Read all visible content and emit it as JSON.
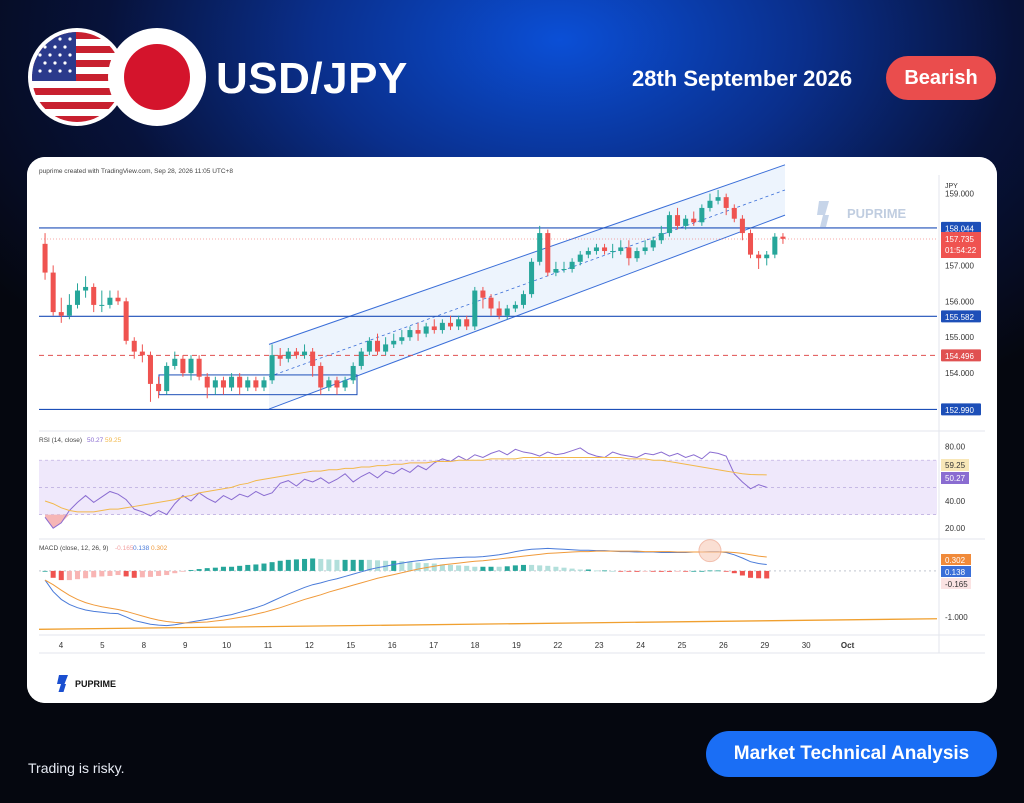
{
  "header": {
    "pair": "USD/JPY",
    "date": "28th September 2026",
    "sentiment": "Bearish"
  },
  "footer": {
    "disclaimer": "Trading is risky.",
    "cta": "Market Technical Analysis"
  },
  "colors": {
    "bull": "#26a69a",
    "bear": "#ef5350",
    "level_line": "#1d4fb8",
    "support_dashed": "#e05151",
    "channel": "#3a6ed8",
    "rsi": "#8a6cd1",
    "rsi_ma": "#f2b84b",
    "macd": "#4a7bd9",
    "signal": "#f09a3a"
  },
  "chart_data": [
    {
      "type": "candlestick",
      "title": "puprime created with TradingView.com, Sep 28, 2026 11:05 UTC+8",
      "watermark": "PUPRIME",
      "y_unit": "JPY",
      "ylim": [
        152.5,
        159.35
      ],
      "y_ticks": [
        "159.000",
        "157.000",
        "156.000",
        "155.000",
        "154.000"
      ],
      "x_ticks": [
        "4",
        "5",
        "8",
        "9",
        "10",
        "11",
        "12",
        "15",
        "16",
        "17",
        "18",
        "19",
        "22",
        "23",
        "24",
        "25",
        "26",
        "29",
        "30",
        "Oct"
      ],
      "horizontal_levels": [
        {
          "value": 158.044,
          "label": "158.044",
          "style": "solid",
          "color": "#1d4fb8"
        },
        {
          "value": 155.582,
          "label": "155.582",
          "style": "solid",
          "color": "#1d4fb8"
        },
        {
          "value": 154.496,
          "label": "154.496",
          "style": "dashed",
          "color": "#e05151"
        },
        {
          "value": 152.99,
          "label": "152.990",
          "style": "solid",
          "color": "#1d4fb8"
        }
      ],
      "last_price": {
        "value": 157.735,
        "label": "157.735",
        "countdown": "01:54:22"
      },
      "channel": {
        "lower": [
          [
            153.0,
            0
          ],
          [
            158.4,
            1
          ]
        ],
        "upper": [
          [
            154.8,
            0
          ],
          [
            159.8,
            1
          ]
        ]
      },
      "candles": [
        [
          157.6,
          156.8,
          157.9,
          156.6
        ],
        [
          156.8,
          155.7,
          157.0,
          155.6
        ],
        [
          155.7,
          155.6,
          156.1,
          155.4
        ],
        [
          155.6,
          155.9,
          156.2,
          155.5
        ],
        [
          155.9,
          156.3,
          156.5,
          155.8
        ],
        [
          156.3,
          156.4,
          156.7,
          156.1
        ],
        [
          156.4,
          155.9,
          156.5,
          155.7
        ],
        [
          155.9,
          155.9,
          156.3,
          155.7
        ],
        [
          155.9,
          156.1,
          156.3,
          155.8
        ],
        [
          156.1,
          156.0,
          156.3,
          155.9
        ],
        [
          156.0,
          154.9,
          156.1,
          154.8
        ],
        [
          154.9,
          154.6,
          155.0,
          154.4
        ],
        [
          154.6,
          154.5,
          154.8,
          154.3
        ],
        [
          154.5,
          153.7,
          154.6,
          153.2
        ],
        [
          153.7,
          153.5,
          153.9,
          153.3
        ],
        [
          153.5,
          154.2,
          154.3,
          153.4
        ],
        [
          154.2,
          154.4,
          154.6,
          154.1
        ],
        [
          154.4,
          154.0,
          154.5,
          153.9
        ],
        [
          154.0,
          154.4,
          154.5,
          153.8
        ],
        [
          154.4,
          153.9,
          154.5,
          153.8
        ],
        [
          153.9,
          153.6,
          154.0,
          153.3
        ],
        [
          153.6,
          153.8,
          153.9,
          153.4
        ],
        [
          153.8,
          153.6,
          153.9,
          153.4
        ],
        [
          153.6,
          153.9,
          154.0,
          153.5
        ],
        [
          153.9,
          153.6,
          154.0,
          153.4
        ],
        [
          153.6,
          153.8,
          153.9,
          153.5
        ],
        [
          153.8,
          153.6,
          153.9,
          153.5
        ],
        [
          153.6,
          153.8,
          153.9,
          153.5
        ],
        [
          153.8,
          154.5,
          154.8,
          153.7
        ],
        [
          154.5,
          154.4,
          154.7,
          154.2
        ],
        [
          154.4,
          154.6,
          154.7,
          154.3
        ],
        [
          154.6,
          154.5,
          154.7,
          154.4
        ],
        [
          154.5,
          154.6,
          154.8,
          154.4
        ],
        [
          154.6,
          154.2,
          154.7,
          153.9
        ],
        [
          154.2,
          153.6,
          154.3,
          153.4
        ],
        [
          153.6,
          153.8,
          153.9,
          153.5
        ],
        [
          153.8,
          153.6,
          153.9,
          153.4
        ],
        [
          153.6,
          153.8,
          153.9,
          153.5
        ],
        [
          153.8,
          154.2,
          154.3,
          153.7
        ],
        [
          154.2,
          154.6,
          154.7,
          154.1
        ],
        [
          154.6,
          154.9,
          155.0,
          154.5
        ],
        [
          154.9,
          154.6,
          155.1,
          154.5
        ],
        [
          154.6,
          154.8,
          155.0,
          154.5
        ],
        [
          154.8,
          154.9,
          155.1,
          154.7
        ],
        [
          154.9,
          155.0,
          155.2,
          154.8
        ],
        [
          155.0,
          155.2,
          155.3,
          154.9
        ],
        [
          155.2,
          155.1,
          155.4,
          154.9
        ],
        [
          155.1,
          155.3,
          155.4,
          155.0
        ],
        [
          155.3,
          155.2,
          155.5,
          155.1
        ],
        [
          155.2,
          155.4,
          155.5,
          155.1
        ],
        [
          155.4,
          155.3,
          155.6,
          155.2
        ],
        [
          155.3,
          155.5,
          155.6,
          155.2
        ],
        [
          155.5,
          155.3,
          155.6,
          155.2
        ],
        [
          155.3,
          156.3,
          156.4,
          155.2
        ],
        [
          156.3,
          156.1,
          156.4,
          155.8
        ],
        [
          156.1,
          155.8,
          156.2,
          155.6
        ],
        [
          155.8,
          155.6,
          156.0,
          155.5
        ],
        [
          155.6,
          155.8,
          155.9,
          155.5
        ],
        [
          155.8,
          155.9,
          156.0,
          155.7
        ],
        [
          155.9,
          156.2,
          156.3,
          155.8
        ],
        [
          156.2,
          157.1,
          157.2,
          156.1
        ],
        [
          157.1,
          157.9,
          158.1,
          157.0
        ],
        [
          157.9,
          156.8,
          158.0,
          156.7
        ],
        [
          156.8,
          156.9,
          157.1,
          156.7
        ],
        [
          156.9,
          156.9,
          157.1,
          156.8
        ],
        [
          156.9,
          157.1,
          157.2,
          156.8
        ],
        [
          157.1,
          157.3,
          157.4,
          157.0
        ],
        [
          157.3,
          157.4,
          157.5,
          157.2
        ],
        [
          157.4,
          157.5,
          157.6,
          157.3
        ],
        [
          157.5,
          157.4,
          157.6,
          157.3
        ],
        [
          157.4,
          157.4,
          157.6,
          157.2
        ],
        [
          157.4,
          157.5,
          157.7,
          157.3
        ],
        [
          157.5,
          157.2,
          157.7,
          157.0
        ],
        [
          157.2,
          157.4,
          157.5,
          157.1
        ],
        [
          157.4,
          157.5,
          157.7,
          157.3
        ],
        [
          157.5,
          157.7,
          157.8,
          157.4
        ],
        [
          157.7,
          157.9,
          158.1,
          157.6
        ],
        [
          157.9,
          158.4,
          158.5,
          157.8
        ],
        [
          158.4,
          158.1,
          158.6,
          158.0
        ],
        [
          158.1,
          158.3,
          158.4,
          158.0
        ],
        [
          158.3,
          158.2,
          158.5,
          158.1
        ],
        [
          158.2,
          158.6,
          158.7,
          158.1
        ],
        [
          158.6,
          158.8,
          159.0,
          158.5
        ],
        [
          158.8,
          158.9,
          159.1,
          158.7
        ],
        [
          158.9,
          158.6,
          159.0,
          158.4
        ],
        [
          158.6,
          158.3,
          158.7,
          158.2
        ],
        [
          158.3,
          157.9,
          158.4,
          157.7
        ],
        [
          157.9,
          157.3,
          158.0,
          157.2
        ],
        [
          157.3,
          157.2,
          157.4,
          156.9
        ],
        [
          157.2,
          157.3,
          157.4,
          157.0
        ],
        [
          157.3,
          157.8,
          157.9,
          157.2
        ],
        [
          157.8,
          157.74,
          157.9,
          157.6
        ]
      ]
    },
    {
      "type": "line",
      "title": "RSI (14, close)",
      "header_values": [
        "50.27",
        "59.25"
      ],
      "ylim": [
        15,
        90
      ],
      "y_ticks": [
        "80.00",
        "40.00",
        "20.00"
      ],
      "band": [
        30,
        70
      ],
      "badges": [
        "59.25",
        "50.27"
      ],
      "series": [
        {
          "values": [
            28,
            20,
            24,
            33,
            39,
            44,
            39,
            43,
            47,
            45,
            41,
            34,
            32,
            29,
            33,
            30,
            38,
            44,
            40,
            46,
            42,
            39,
            44,
            41,
            45,
            43,
            47,
            44,
            46,
            53,
            55,
            51,
            56,
            54,
            57,
            53,
            56,
            60,
            54,
            58,
            61,
            57,
            62,
            60,
            64,
            61,
            66,
            63,
            68,
            71,
            69,
            73,
            70,
            74,
            72,
            75,
            77,
            74,
            78,
            76,
            75,
            73,
            76,
            74,
            75,
            77,
            79,
            75,
            73,
            72,
            76,
            74,
            73,
            72,
            75,
            74,
            76,
            73,
            75,
            72,
            74,
            71,
            76,
            75,
            73,
            60,
            54,
            49,
            52,
            50
          ]
        },
        {
          "values": [
            40,
            38,
            35,
            33,
            32,
            32,
            32,
            33,
            34,
            34,
            35,
            36,
            37,
            38,
            39,
            40,
            41,
            43,
            44,
            46,
            47,
            48,
            49,
            50,
            52,
            53,
            55,
            56,
            57,
            58,
            59,
            60,
            61,
            62,
            62,
            63,
            63,
            64,
            64,
            65,
            65,
            66,
            66,
            67,
            67,
            68,
            68,
            68,
            69,
            69,
            69,
            70,
            70,
            70,
            70,
            71,
            71,
            71,
            71,
            72,
            72,
            72,
            72,
            72,
            72,
            72,
            72,
            72,
            72,
            72,
            72,
            72,
            71,
            71,
            71,
            70,
            70,
            69,
            68,
            67,
            66,
            65,
            64,
            63,
            62,
            61,
            60,
            59.5,
            59.3,
            59.25
          ]
        }
      ]
    },
    {
      "type": "line",
      "title": "MACD (close, 12, 26, 9)",
      "header_values": [
        "-0.165",
        "0.138",
        "0.302"
      ],
      "ylim": [
        -1.35,
        0.65
      ],
      "y_ticks": [
        "-1.000"
      ],
      "badges": [
        "0.302",
        "0.138",
        "-0.165"
      ],
      "series": [
        {
          "values": [
            -0.2,
            -0.45,
            -0.62,
            -0.73,
            -0.8,
            -0.85,
            -0.88,
            -0.9,
            -0.92,
            -0.93,
            -1.0,
            -1.08,
            -1.12,
            -1.16,
            -1.18,
            -1.19,
            -1.17,
            -1.14,
            -1.11,
            -1.08,
            -1.05,
            -1.02,
            -0.98,
            -0.95,
            -0.9,
            -0.85,
            -0.8,
            -0.74,
            -0.66,
            -0.58,
            -0.5,
            -0.43,
            -0.36,
            -0.3,
            -0.26,
            -0.21,
            -0.17,
            -0.12,
            -0.07,
            -0.02,
            0.03,
            0.07,
            0.1,
            0.14,
            0.17,
            0.2,
            0.22,
            0.24,
            0.26,
            0.27,
            0.28,
            0.29,
            0.3,
            0.3,
            0.31,
            0.33,
            0.35,
            0.38,
            0.42,
            0.45,
            0.47,
            0.48,
            0.49,
            0.48,
            0.47,
            0.46,
            0.45,
            0.45,
            0.44,
            0.44,
            0.43,
            0.42,
            0.42,
            0.41,
            0.41,
            0.41,
            0.4,
            0.4,
            0.4,
            0.4,
            0.41,
            0.41,
            0.42,
            0.42,
            0.4,
            0.35,
            0.28,
            0.2,
            0.16,
            0.138
          ]
        },
        {
          "values": [
            -0.2,
            -0.3,
            -0.42,
            -0.53,
            -0.62,
            -0.69,
            -0.74,
            -0.78,
            -0.81,
            -0.84,
            -0.88,
            -0.93,
            -0.98,
            -1.03,
            -1.07,
            -1.1,
            -1.12,
            -1.13,
            -1.13,
            -1.12,
            -1.11,
            -1.09,
            -1.07,
            -1.04,
            -1.01,
            -0.98,
            -0.94,
            -0.9,
            -0.85,
            -0.8,
            -0.74,
            -0.68,
            -0.62,
            -0.57,
            -0.52,
            -0.46,
            -0.41,
            -0.36,
            -0.31,
            -0.26,
            -0.21,
            -0.16,
            -0.12,
            -0.08,
            -0.04,
            0.0,
            0.04,
            0.07,
            0.1,
            0.13,
            0.15,
            0.17,
            0.19,
            0.21,
            0.22,
            0.24,
            0.26,
            0.28,
            0.3,
            0.32,
            0.34,
            0.36,
            0.38,
            0.39,
            0.4,
            0.41,
            0.42,
            0.42,
            0.43,
            0.43,
            0.43,
            0.43,
            0.43,
            0.43,
            0.42,
            0.42,
            0.42,
            0.42,
            0.41,
            0.41,
            0.41,
            0.41,
            0.41,
            0.41,
            0.41,
            0.4,
            0.38,
            0.35,
            0.32,
            0.302
          ]
        }
      ],
      "trendline": [
        -1.27,
        -1.04
      ]
    }
  ]
}
